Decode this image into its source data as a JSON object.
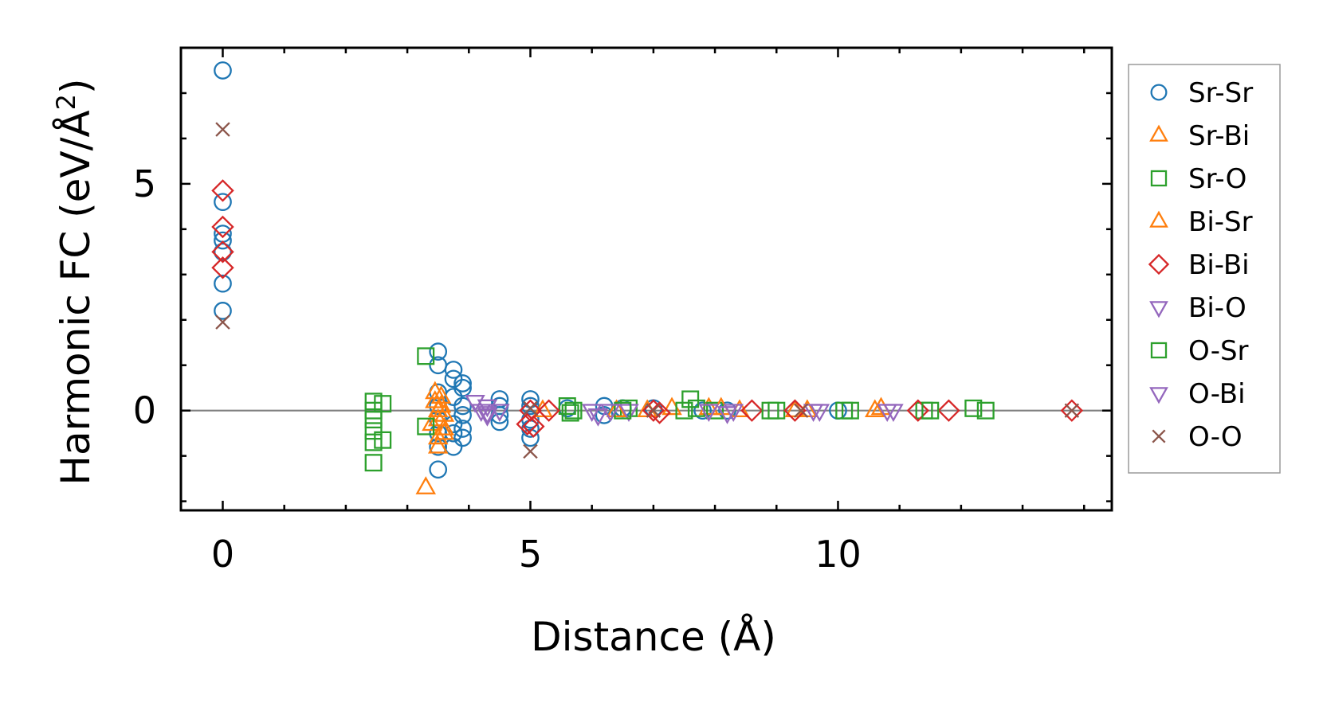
{
  "chart_data": {
    "type": "scatter",
    "title": "",
    "xlabel": "Distance (Å)",
    "ylabel": "Harmonic FC (eV/Å",
    "ylabel_sup": "2",
    "ylabel_close": ")",
    "xlim": [
      -0.68,
      14.45
    ],
    "ylim": [
      -2.2,
      8.0
    ],
    "xticks": [
      0,
      5,
      10
    ],
    "xtick_labels": [
      "0",
      "5",
      "10"
    ],
    "yticks": [
      0,
      5
    ],
    "ytick_labels": [
      "0",
      "5"
    ],
    "zero_line": true,
    "grid": false,
    "legend_position": "outside-right",
    "series": [
      {
        "name": "Sr-Sr",
        "marker": "circle",
        "color": "#1f77b4",
        "points": [
          [
            0,
            7.5
          ],
          [
            0,
            4.6
          ],
          [
            0,
            3.9
          ],
          [
            0,
            3.75
          ],
          [
            0,
            3.5
          ],
          [
            0,
            2.8
          ],
          [
            0,
            2.2
          ],
          [
            3.5,
            1.3
          ],
          [
            3.5,
            1.0
          ],
          [
            3.5,
            0.4
          ],
          [
            3.5,
            0.1
          ],
          [
            3.5,
            -0.2
          ],
          [
            3.5,
            -0.5
          ],
          [
            3.5,
            -0.8
          ],
          [
            3.5,
            -1.3
          ],
          [
            3.75,
            0.9
          ],
          [
            3.75,
            0.7
          ],
          [
            3.75,
            0.3
          ],
          [
            3.75,
            -0.3
          ],
          [
            3.75,
            -0.5
          ],
          [
            3.75,
            -0.8
          ],
          [
            3.9,
            0.6
          ],
          [
            3.9,
            0.5
          ],
          [
            3.9,
            0.1
          ],
          [
            3.9,
            -0.1
          ],
          [
            3.9,
            -0.4
          ],
          [
            3.9,
            -0.6
          ],
          [
            4.5,
            0.25
          ],
          [
            4.5,
            0.1
          ],
          [
            4.5,
            -0.1
          ],
          [
            4.5,
            -0.25
          ],
          [
            5.0,
            0.25
          ],
          [
            5.0,
            0.1
          ],
          [
            5.0,
            -0.2
          ],
          [
            5.0,
            -0.4
          ],
          [
            5.0,
            -0.6
          ],
          [
            5.6,
            0.05
          ],
          [
            6.2,
            0.1
          ],
          [
            6.2,
            -0.1
          ],
          [
            6.5,
            0.05
          ],
          [
            7.0,
            0.05
          ],
          [
            7.8,
            0.0
          ],
          [
            8.2,
            0.0
          ],
          [
            10.0,
            0.0
          ]
        ]
      },
      {
        "name": "Sr-Bi",
        "marker": "triangle-up",
        "color": "#ff7f0e",
        "points": [
          [
            3.3,
            -1.7
          ],
          [
            3.4,
            -0.3
          ],
          [
            3.45,
            0.4
          ],
          [
            3.45,
            0.2
          ],
          [
            3.5,
            0.0
          ],
          [
            3.5,
            -0.2
          ],
          [
            3.5,
            -0.6
          ],
          [
            3.5,
            -0.8
          ],
          [
            3.55,
            0.1
          ],
          [
            3.6,
            -0.1
          ],
          [
            3.6,
            -0.4
          ],
          [
            6.9,
            0.0
          ],
          [
            7.9,
            0.05
          ],
          [
            8.4,
            0.0
          ],
          [
            9.5,
            0.0
          ],
          [
            10.6,
            0.0
          ]
        ]
      },
      {
        "name": "Sr-O",
        "marker": "square",
        "color": "#2ca02c",
        "points": [
          [
            2.45,
            0.2
          ],
          [
            2.45,
            0.0
          ],
          [
            2.45,
            -0.2
          ],
          [
            2.45,
            -0.45
          ],
          [
            2.45,
            -0.7
          ],
          [
            2.45,
            -1.15
          ],
          [
            2.6,
            0.15
          ],
          [
            2.6,
            -0.65
          ],
          [
            3.3,
            1.2
          ],
          [
            3.3,
            -0.35
          ],
          [
            5.6,
            0.1
          ],
          [
            5.65,
            -0.05
          ],
          [
            6.6,
            0.05
          ],
          [
            7.6,
            0.25
          ],
          [
            7.7,
            0.05
          ],
          [
            8.0,
            0.0
          ],
          [
            9.0,
            0.0
          ],
          [
            10.2,
            0.0
          ],
          [
            11.4,
            0.0
          ],
          [
            12.2,
            0.05
          ],
          [
            12.4,
            0.0
          ]
        ]
      },
      {
        "name": "Bi-Sr",
        "marker": "triangle-up",
        "color": "#ff7f0e",
        "points": [
          [
            3.55,
            0.3
          ],
          [
            3.6,
            -0.5
          ],
          [
            5.2,
            0.0
          ],
          [
            6.4,
            0.0
          ],
          [
            7.3,
            0.05
          ],
          [
            8.1,
            0.05
          ],
          [
            9.3,
            0.0
          ],
          [
            10.7,
            0.05
          ]
        ]
      },
      {
        "name": "Bi-Bi",
        "marker": "diamond",
        "color": "#d62728",
        "points": [
          [
            0,
            4.85
          ],
          [
            0,
            4.05
          ],
          [
            0,
            3.5
          ],
          [
            0,
            3.15
          ],
          [
            4.95,
            -0.3
          ],
          [
            5.05,
            -0.35
          ],
          [
            5.0,
            0.0
          ],
          [
            5.3,
            0.0
          ],
          [
            7.0,
            0.0
          ],
          [
            7.1,
            -0.05
          ],
          [
            8.6,
            0.0
          ],
          [
            9.3,
            0.0
          ],
          [
            11.3,
            0.0
          ],
          [
            11.8,
            0.0
          ],
          [
            13.8,
            0.0
          ]
        ]
      },
      {
        "name": "Bi-O",
        "marker": "triangle-down",
        "color": "#9467bd",
        "points": [
          [
            4.1,
            0.2
          ],
          [
            4.2,
            0.0
          ],
          [
            4.3,
            -0.1
          ],
          [
            4.3,
            0.1
          ],
          [
            4.5,
            0.0
          ],
          [
            6.0,
            0.0
          ],
          [
            6.1,
            -0.1
          ],
          [
            6.6,
            0.0
          ],
          [
            7.9,
            0.0
          ],
          [
            8.2,
            -0.05
          ],
          [
            9.7,
            0.0
          ]
        ]
      },
      {
        "name": "O-Sr",
        "marker": "square",
        "color": "#2ca02c",
        "points": [
          [
            5.7,
            0.0
          ],
          [
            6.5,
            0.0
          ],
          [
            7.5,
            0.0
          ],
          [
            8.9,
            0.0
          ],
          [
            10.1,
            0.0
          ],
          [
            11.5,
            0.0
          ]
        ]
      },
      {
        "name": "O-Bi",
        "marker": "triangle-down",
        "color": "#9467bd",
        "points": [
          [
            4.3,
            -0.05
          ],
          [
            6.3,
            0.0
          ],
          [
            8.3,
            0.0
          ],
          [
            9.6,
            0.0
          ],
          [
            10.8,
            0.0
          ],
          [
            10.9,
            0.0
          ]
        ]
      },
      {
        "name": "O-O",
        "marker": "x",
        "color": "#8c564b",
        "points": [
          [
            0,
            6.2
          ],
          [
            0,
            1.95
          ],
          [
            5.0,
            -0.9
          ],
          [
            5.0,
            0.05
          ],
          [
            7.0,
            0.0
          ],
          [
            9.4,
            0.0
          ],
          [
            13.8,
            0.0
          ]
        ]
      }
    ]
  }
}
